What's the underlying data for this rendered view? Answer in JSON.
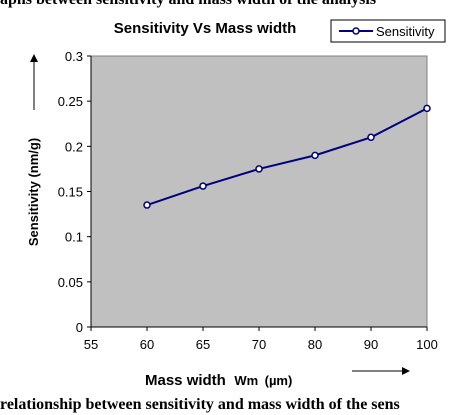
{
  "top_fragment": "aphs between sensitivity and mass width of the analysis",
  "bottom_fragment": "relationship between sensitivity and mass width of the sens",
  "chart_data": {
    "type": "line",
    "title": "Sensitivity Vs Mass width",
    "categories": [
      "60",
      "65",
      "70",
      "80",
      "90",
      "100"
    ],
    "x_ticks": [
      "55",
      "60",
      "65",
      "70",
      "80",
      "90",
      "100"
    ],
    "series": [
      {
        "name": "Sensitivity",
        "values": [
          0.135,
          0.156,
          0.175,
          0.19,
          0.21,
          0.242
        ]
      }
    ],
    "xlabel": "Mass width",
    "xlabel_symbol": "Wm",
    "xlabel_unit": "(µm)",
    "ylabel": "Sensitivity (nm/g)",
    "ylim": [
      0,
      0.3
    ],
    "y_ticks": [
      "0",
      "0.05",
      "0.1",
      "0.15",
      "0.2",
      "0.25",
      "0.3"
    ],
    "legend": "top-right",
    "grid": false,
    "colors": {
      "plot_bg": "#c0c0c0",
      "series": "#000080"
    }
  }
}
